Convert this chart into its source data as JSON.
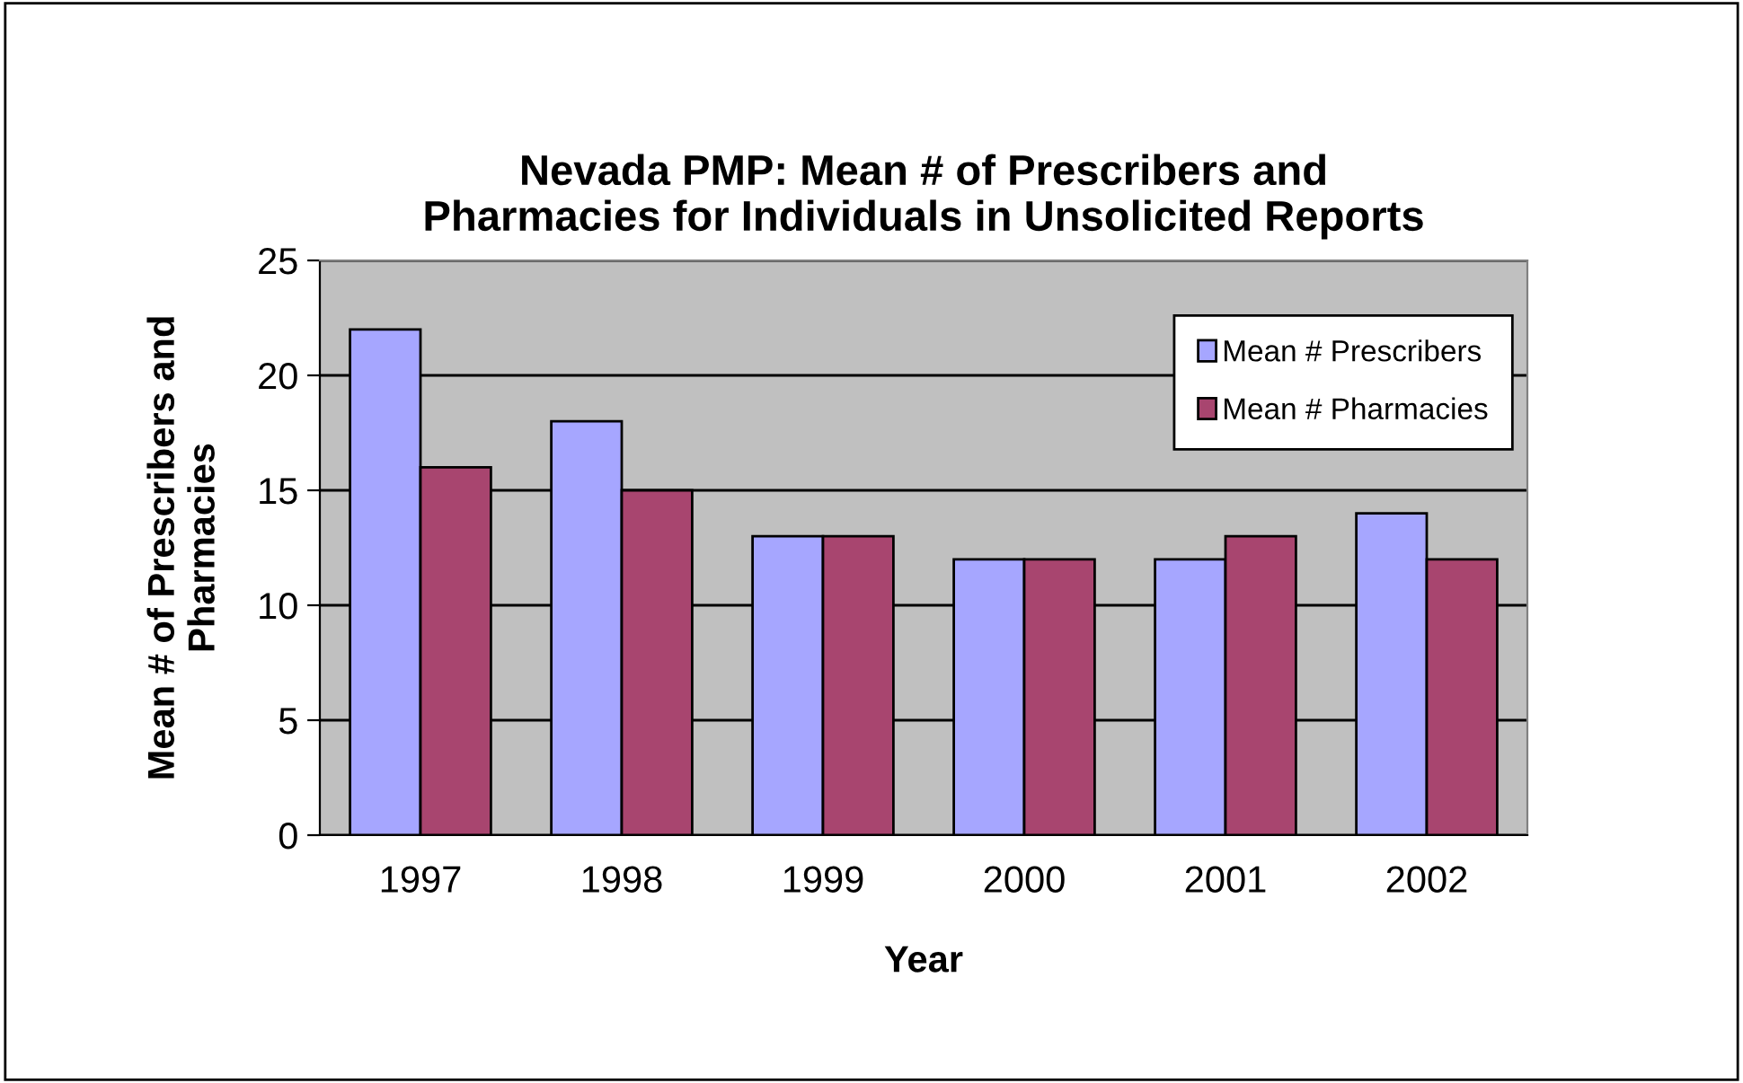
{
  "chart_data": {
    "type": "bar",
    "title": "Nevada PMP: Mean # of Prescribers and\nPharmacies for Individuals in Unsolicited Reports",
    "xlabel": "Year",
    "ylabel": "Mean # of Prescribers and\nPharmacies",
    "categories": [
      "1997",
      "1998",
      "1999",
      "2000",
      "2001",
      "2002"
    ],
    "series": [
      {
        "name": "Mean # Prescribers",
        "color": "#a6a6ff",
        "values": [
          22,
          18,
          13,
          12,
          12,
          14
        ]
      },
      {
        "name": "Mean # Pharmacies",
        "color": "#a8456f",
        "values": [
          16,
          15,
          13,
          12,
          13,
          12
        ]
      }
    ],
    "ylim": [
      0,
      25
    ],
    "yticks": [
      0,
      5,
      10,
      15,
      20,
      25
    ],
    "grid": "y",
    "legend": "top right"
  }
}
